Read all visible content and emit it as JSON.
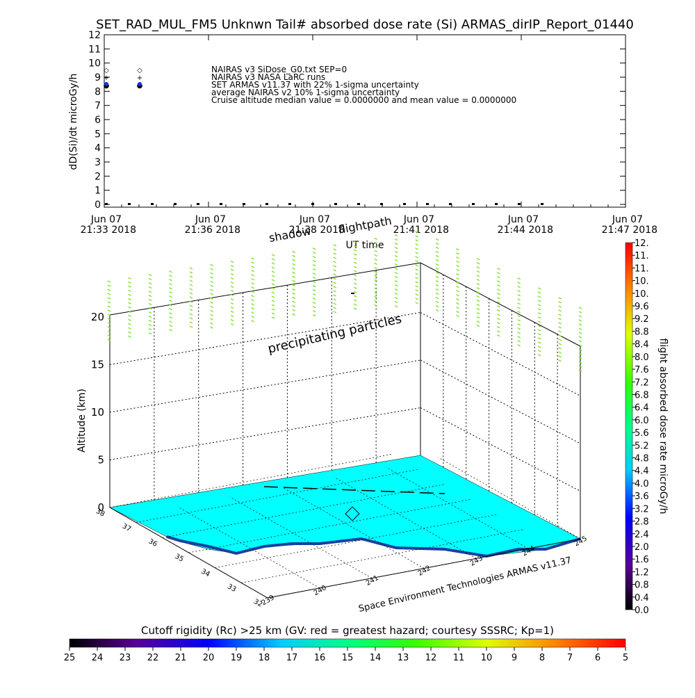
{
  "title": "SET_RAD_MUL_FM5 Unknwn Tail#  absorbed dose rate (Si) ARMAS_dirIP_Report_01440",
  "chart_data": [
    {
      "type": "scatter",
      "ylabel": "dD(Si)/dt microGy/h",
      "xlabel": "UT time",
      "ylim": [
        0,
        12
      ],
      "yticks": [
        "0",
        "1",
        "2",
        "3",
        "4",
        "5",
        "6",
        "7",
        "8",
        "9",
        "10",
        "11",
        "12"
      ],
      "xticks": [
        {
          "date": "Jun 07",
          "time": "21:33 2018"
        },
        {
          "date": "Jun 07",
          "time": "21:36 2018"
        },
        {
          "date": "Jun 07",
          "time": "21:38 2018"
        },
        {
          "date": "Jun 07",
          "time": "21:41 2018"
        },
        {
          "date": "Jun 07",
          "time": "21:44 2018"
        },
        {
          "date": "Jun 07",
          "time": "21:47 2018"
        }
      ],
      "legend": [
        {
          "symbol": "◇",
          "label": "NAIRAS v3 SiDose_G0.txt SEP=0"
        },
        {
          "symbol": "+",
          "label": "NAIRAS v3 NASA LaRC runs"
        },
        {
          "symbol": "●",
          "label": "SET ARMAS v11.37 with 22% 1-sigma uncertainty"
        },
        {
          "symbol": "",
          "label": "average NAIRAS v2 10% 1-sigma uncertainty"
        },
        {
          "symbol": "",
          "label": "Cruise altitude median value = 0.0000000 and mean value = 0.0000000"
        }
      ],
      "legend_placement": "top-left",
      "series": [
        {
          "marker": "dot",
          "values_y": [
            0,
            0,
            0,
            0,
            0,
            0,
            0,
            0,
            0,
            0,
            0,
            0,
            0,
            0,
            0,
            0,
            0,
            0,
            0,
            0
          ]
        }
      ]
    },
    {
      "type": "3d-flightpath",
      "zlabel": "Altitude (km)",
      "zticks": [
        "0",
        "5",
        "10",
        "15",
        "20"
      ],
      "ylabels": [
        "38",
        "37",
        "36",
        "35",
        "34",
        "33",
        "32"
      ],
      "xlabels": [
        "239",
        "240",
        "241",
        "242",
        "243",
        "244",
        "245"
      ],
      "annotations": [
        "precipitating particles",
        "shadow",
        "flightpath"
      ],
      "credit": "Space Environment Technologies ARMAS v11.37",
      "ground_color": "#00ffff",
      "particle_color": "#7fe030"
    }
  ],
  "colorbar_right": {
    "label": "flight absorbed dose rate microGy/h",
    "ticks": [
      "0.0",
      "0.4",
      "0.8",
      "1.2",
      "1.6",
      "2.0",
      "2.4",
      "2.8",
      "3.2",
      "3.6",
      "4.0",
      "4.4",
      "4.8",
      "5.2",
      "5.6",
      "6.0",
      "6.4",
      "6.8",
      "7.2",
      "7.6",
      "8.0",
      "8.4",
      "8.8",
      "9.2",
      "9.6",
      "10.",
      "10.",
      "11.",
      "11.",
      "12."
    ]
  },
  "colorbar_bottom": {
    "label": "Cutoff rigidity (Rc) >25 km (GV: red = greatest hazard; courtesy SSSRC; Kp=1)",
    "ticks": [
      "25",
      "24",
      "23",
      "22",
      "21",
      "20",
      "19",
      "18",
      "17",
      "16",
      "15",
      "14",
      "13",
      "12",
      "11",
      "10",
      "9",
      "8",
      "7",
      "6",
      "5"
    ]
  }
}
